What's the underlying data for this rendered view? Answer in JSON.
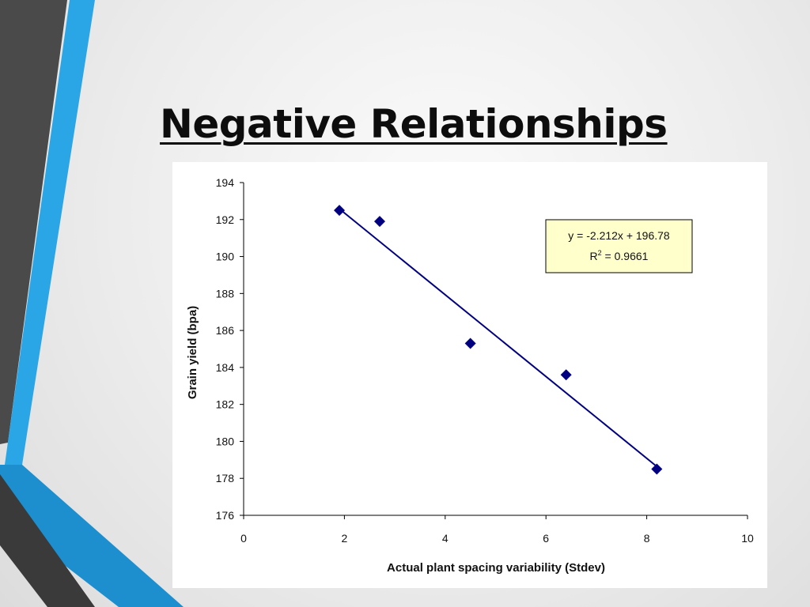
{
  "slide": {
    "title": "Negative Relationships"
  },
  "theme": {
    "accent_blue": "#29a8e8",
    "accent_dark": "#444444",
    "marker_color": "#000080",
    "trendline_color": "#000080",
    "equation_box_fill": "#ffffcc"
  },
  "chart_data": {
    "type": "scatter",
    "xlabel": "Actual plant spacing variability (Stdev)",
    "ylabel": "Grain yield (bpa)",
    "xlim": [
      0,
      10
    ],
    "ylim": [
      176,
      194
    ],
    "x_ticks": [
      "0",
      "2",
      "4",
      "6",
      "8",
      "10"
    ],
    "y_ticks": [
      "176",
      "178",
      "180",
      "182",
      "184",
      "186",
      "188",
      "190",
      "192",
      "194"
    ],
    "grid": false,
    "legend": "none",
    "marker": "diamond",
    "series": [
      {
        "x": [
          1.9,
          2.7,
          4.5,
          6.4,
          8.2
        ],
        "y": [
          192.5,
          191.9,
          185.3,
          183.6,
          178.5
        ]
      }
    ],
    "trendline": {
      "type": "linear",
      "slope": -2.212,
      "intercept": 196.78,
      "x_range": [
        1.9,
        8.2
      ],
      "equation_label": "y = -2.212x + 196.78",
      "r2_label": "R",
      "r2_superscript": "2",
      "r2_value_label": " = 0.9661",
      "label_position": "top-right"
    }
  }
}
